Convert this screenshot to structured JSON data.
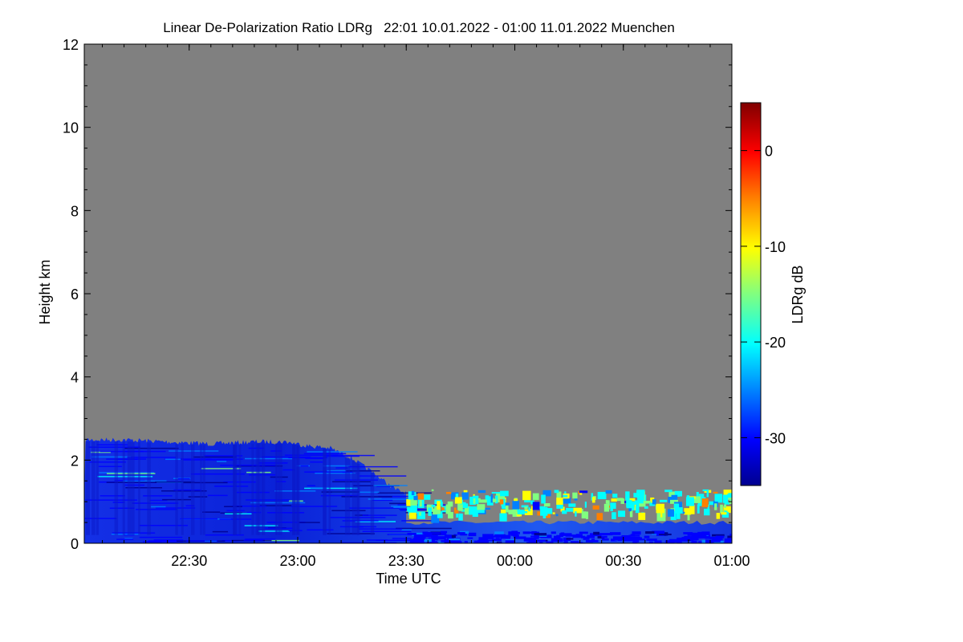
{
  "chart_data": {
    "type": "heatmap",
    "title": "Linear De-Polarization Ratio LDRg   22:01 10.01.2022 - 01:00 11.01.2022 Muenchen",
    "xlabel": "Time UTC",
    "ylabel": "Height km",
    "x_start_hours": 22.0167,
    "x_end_hours": 25.0,
    "x_ticks": [
      {
        "hours": 22.5,
        "label": "22:30"
      },
      {
        "hours": 23.0,
        "label": "23:00"
      },
      {
        "hours": 23.5,
        "label": "23:30"
      },
      {
        "hours": 24.0,
        "label": "00:00"
      },
      {
        "hours": 24.5,
        "label": "00:30"
      },
      {
        "hours": 25.0,
        "label": "01:00"
      }
    ],
    "ylim": [
      0,
      12
    ],
    "y_ticks": [
      0,
      2,
      4,
      6,
      8,
      10,
      12
    ],
    "background_color": "#808080",
    "colorbar": {
      "label": "LDRg dB",
      "range": [
        -35,
        5
      ],
      "ticks": [
        0,
        -10,
        -20,
        -30
      ],
      "colors": [
        "#00008f",
        "#0000ff",
        "#0080ff",
        "#00ffff",
        "#80ff80",
        "#ffff00",
        "#ff8000",
        "#ff0000",
        "#800000"
      ]
    },
    "cloud_top_profile": [
      {
        "hours": 22.02,
        "km": 2.55
      },
      {
        "hours": 22.2,
        "km": 2.55
      },
      {
        "hours": 22.4,
        "km": 2.5
      },
      {
        "hours": 22.6,
        "km": 2.45
      },
      {
        "hours": 22.8,
        "km": 2.5
      },
      {
        "hours": 22.95,
        "km": 2.5
      },
      {
        "hours": 23.05,
        "km": 2.4
      },
      {
        "hours": 23.15,
        "km": 2.35
      },
      {
        "hours": 23.25,
        "km": 2.1
      },
      {
        "hours": 23.35,
        "km": 1.75
      },
      {
        "hours": 23.45,
        "km": 1.35
      },
      {
        "hours": 23.55,
        "km": 1.2
      },
      {
        "hours": 23.75,
        "km": 1.25
      },
      {
        "hours": 24.0,
        "km": 1.2
      },
      {
        "hours": 24.3,
        "km": 1.2
      },
      {
        "hours": 24.6,
        "km": 1.25
      },
      {
        "hours": 24.85,
        "km": 1.25
      },
      {
        "hours": 25.0,
        "km": 1.25
      }
    ],
    "features": [
      {
        "name": "boundary-layer-cloud",
        "hours_start": 22.02,
        "hours_end": 23.5,
        "km_top": 2.5,
        "ldr_db": -31
      },
      {
        "name": "thin-cloud-layer",
        "hours_start": 23.5,
        "hours_end": 25.0,
        "km_low": 0.7,
        "km_high": 1.3,
        "ldr_db": -20
      },
      {
        "name": "surface-layer",
        "hours_start": 23.5,
        "hours_end": 25.0,
        "km_low": 0.0,
        "km_high": 0.3,
        "ldr_db": -32
      }
    ]
  }
}
